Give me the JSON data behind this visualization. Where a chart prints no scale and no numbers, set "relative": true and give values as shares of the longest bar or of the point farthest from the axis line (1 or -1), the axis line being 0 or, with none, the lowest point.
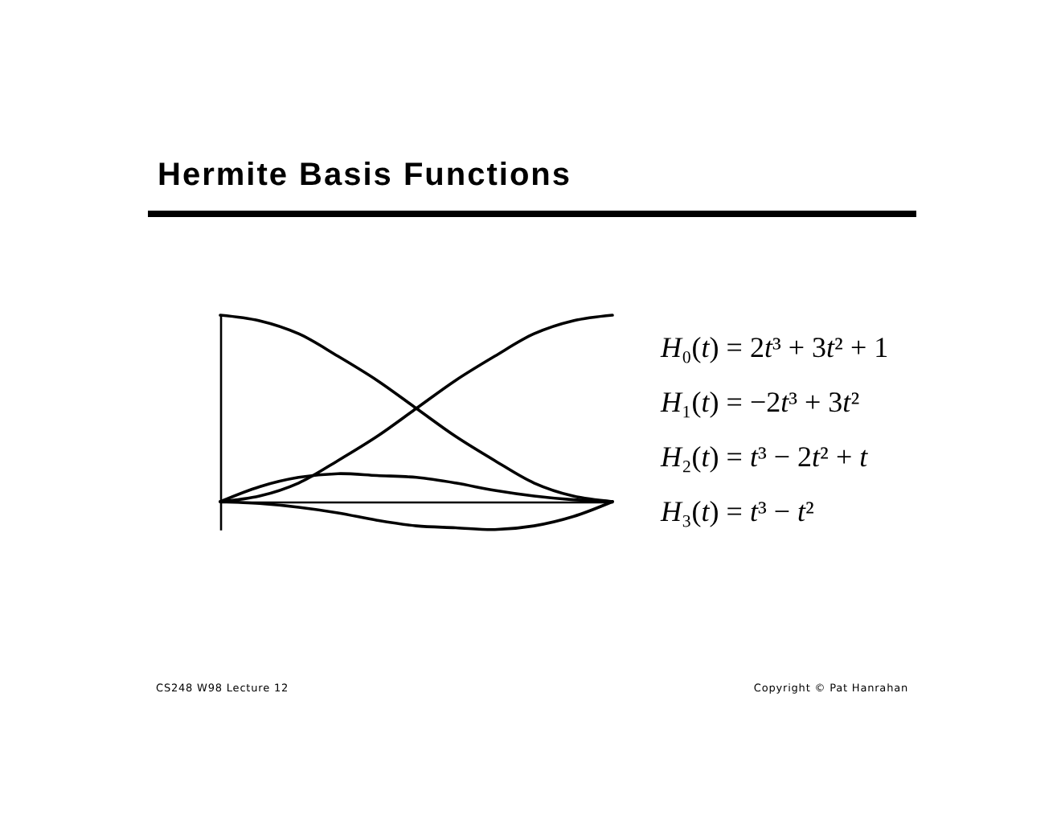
{
  "chart_data": {
    "type": "line",
    "title": "Hermite Basis Functions",
    "categories": [
      null,
      null,
      null,
      null,
      null,
      null,
      null,
      null,
      null,
      null,
      null
    ],
    "relative": true,
    "grid": false,
    "series": [
      {
        "color": "#000000",
        "values": [
          1,
          0.97,
          0.9,
          0.78,
          0.65,
          0.5,
          0.35,
          0.22,
          0.1,
          0.03,
          0
        ]
      },
      {
        "color": "#000000",
        "values": [
          0,
          0.03,
          0.1,
          0.22,
          0.35,
          0.5,
          0.65,
          0.78,
          0.9,
          0.97,
          1
        ]
      },
      {
        "color": "#000000",
        "values": [
          0,
          0.08,
          0.13,
          0.15,
          0.14,
          0.13,
          0.1,
          0.06,
          0.03,
          0.01,
          0
        ]
      },
      {
        "color": "#000000",
        "values": [
          0,
          -0.01,
          -0.03,
          -0.06,
          -0.1,
          -0.13,
          -0.14,
          -0.15,
          -0.13,
          -0.08,
          0
        ]
      }
    ],
    "annotations": [
      "H₀(t) = 2t³ + 3t² + 1",
      "H₁(t) = −2t³ + 3t²",
      "H₂(t) = t³ − 2t² + t",
      "H₃(t) = t³ − t²",
      "CS248 W98 Lecture 12",
      "Copyright © Pat Hanrahan"
    ]
  }
}
